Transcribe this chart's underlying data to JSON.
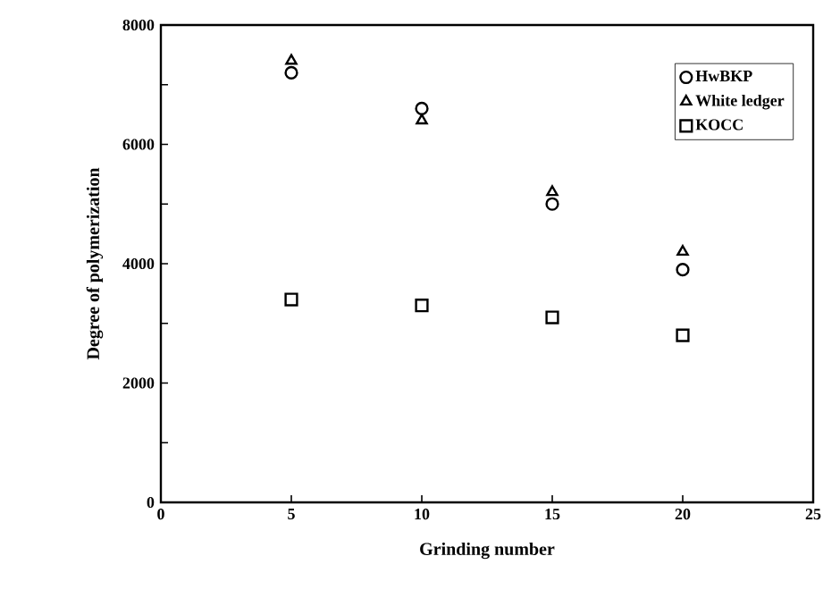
{
  "chart_data": {
    "type": "scatter",
    "xlabel": "Grinding number",
    "ylabel": "Degree of polymerization",
    "x": [
      5,
      10,
      15,
      20
    ],
    "series": [
      {
        "name": "HwBKP",
        "color": "#000000",
        "marker": "circle",
        "values": [
          7200,
          6600,
          5000,
          3900
        ]
      },
      {
        "name": "White ledger",
        "color": "#000000",
        "marker": "triangle",
        "values": [
          7400,
          6400,
          5200,
          4200
        ]
      },
      {
        "name": "KOCC",
        "color": "#000000",
        "marker": "square",
        "values": [
          3400,
          3300,
          3100,
          2800
        ]
      }
    ],
    "xlim": [
      0,
      25
    ],
    "xticks": [
      0,
      5,
      10,
      15,
      20,
      25
    ],
    "ylim": [
      0,
      8000
    ],
    "yticks": [
      0,
      {
        "value": 1000,
        "label": null
      },
      2000,
      {
        "value": 3000,
        "label": null
      },
      4000,
      {
        "value": 5000,
        "label": null
      },
      6000,
      {
        "value": 7000,
        "label": null
      },
      8000
    ],
    "legend": "top right",
    "grid": false
  }
}
